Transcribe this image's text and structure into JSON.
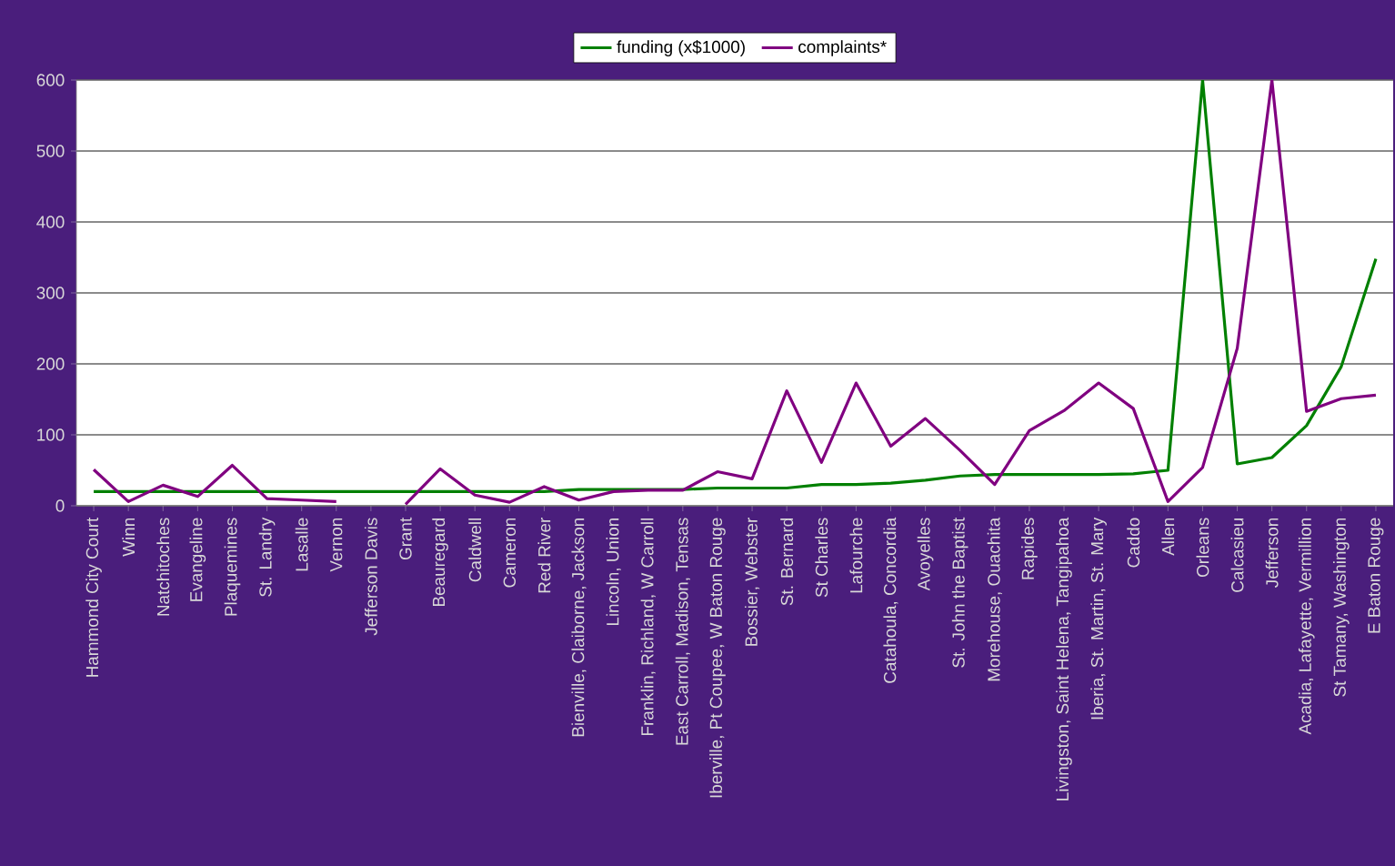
{
  "chart_data": {
    "type": "line",
    "categories": [
      "Hammond City Court",
      "Winn",
      "Natchitoches",
      "Evangeline",
      "Plaquemines",
      "St. Landry",
      "Lasalle",
      "Vernon",
      "Jefferson Davis",
      "Grant",
      "Beauregard",
      "Caldwell",
      "Cameron",
      "Red River",
      "Bienville, Claiborne, Jackson",
      "Lincoln, Union",
      "Franklin, Richland, W Carroll",
      "East Carroll, Madison, Tensas",
      "Iberville, Pt Coupee, W Baton Rouge",
      "Bossier, Webster",
      "St. Bernard",
      "St Charles",
      "Lafourche",
      "Catahoula, Concordia",
      "Avoyelles",
      "St. John the Baptist",
      "Morehouse, Ouachita",
      "Rapides",
      "Livingston, Saint Helena, Tangipahoa",
      "Iberia, St. Martin, St. Mary",
      "Caddo",
      "Allen",
      "Orleans",
      "Calcasieu",
      "Jefferson",
      "Acadia, Lafayette, Vermillion",
      "St Tamany, Washington",
      "E Baton Rouge"
    ],
    "series": [
      {
        "name": "funding (x$1000)",
        "color": "#008000",
        "values": [
          20,
          20,
          20,
          20,
          20,
          20,
          20,
          20,
          20,
          20,
          20,
          20,
          20,
          20,
          23,
          23,
          23,
          23,
          25,
          25,
          25,
          30,
          30,
          32,
          36,
          42,
          44,
          44,
          44,
          44,
          45,
          50,
          600,
          59,
          68,
          113,
          196,
          348
        ]
      },
      {
        "name": "complaints*",
        "color": "#800080",
        "values": [
          51,
          6,
          29,
          13,
          57,
          10,
          8,
          6,
          null,
          2,
          52,
          15,
          5,
          27,
          8,
          20,
          22,
          22,
          48,
          38,
          162,
          61,
          173,
          84,
          123,
          78,
          30,
          106,
          134,
          173,
          137,
          6,
          54,
          222,
          600,
          133,
          151,
          156
        ]
      }
    ],
    "ylim": [
      0,
      600
    ],
    "yticks": [
      0,
      100,
      200,
      300,
      400,
      500,
      600
    ],
    "grid": "y",
    "legend": "top",
    "line_style": "solid"
  }
}
